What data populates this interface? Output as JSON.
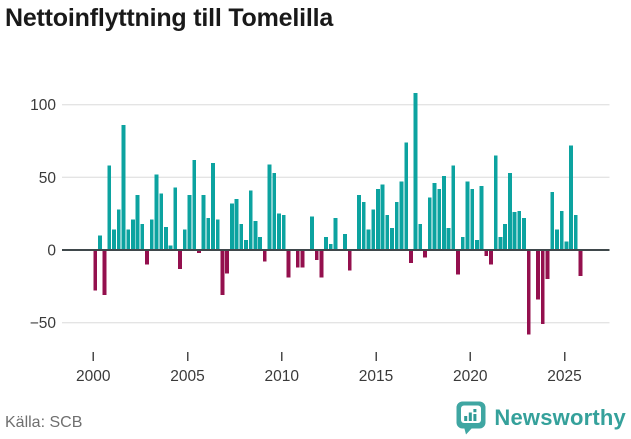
{
  "title": "Nettoinflyttning till Tomelilla",
  "footer": {
    "source": "Källa: SCB",
    "brand": "Newsworthy"
  },
  "colors": {
    "positive": "#0ca3a0",
    "negative": "#94104e",
    "grid": "#e4e4e4",
    "zero_axis": "#3f484b",
    "tick": "#4a4a4a",
    "axis_text": "#3a3a3a",
    "title_text": "#191919",
    "source_text": "#6f6f6f",
    "brand_teal": "#35a19b",
    "logo_badge": "#3fa6a2"
  },
  "chart_data": {
    "type": "bar",
    "title": "Nettoinflyttning till Tomelilla",
    "xlabel": "",
    "ylabel": "",
    "frequency": "quarterly",
    "start_year": 2000,
    "quarters_per_year": 4,
    "x_ticks": [
      2000,
      2005,
      2010,
      2015,
      2020,
      2025
    ],
    "y_ticks": [
      100,
      50,
      0,
      -50
    ],
    "y_tick_labels": [
      "100",
      "50",
      "0",
      "−50"
    ],
    "ylim": [
      -65,
      114
    ],
    "grid": "horizontal",
    "legend": "none",
    "values": [
      -28,
      10,
      -31,
      58,
      14,
      28,
      86,
      14,
      21,
      38,
      18,
      -10,
      21,
      52,
      39,
      16,
      3,
      43,
      -13,
      14,
      38,
      62,
      -2,
      38,
      22,
      60,
      21,
      -31,
      -16,
      32,
      35,
      18,
      7,
      41,
      20,
      9,
      -8,
      59,
      53,
      25,
      24,
      -19,
      0,
      -12,
      -12,
      0,
      23,
      -7,
      -19,
      9,
      4,
      22,
      0,
      11,
      -14,
      0,
      38,
      33,
      14,
      28,
      42,
      45,
      24,
      15,
      33,
      47,
      74,
      -9,
      108,
      18,
      -5,
      36,
      46,
      42,
      51,
      15,
      58,
      -17,
      9,
      47,
      42,
      7,
      44,
      -4,
      -10,
      65,
      9,
      18,
      53,
      26,
      27,
      22,
      -58,
      0,
      -34,
      -51,
      -20,
      40,
      14,
      27,
      6,
      72,
      24,
      -18
    ]
  }
}
